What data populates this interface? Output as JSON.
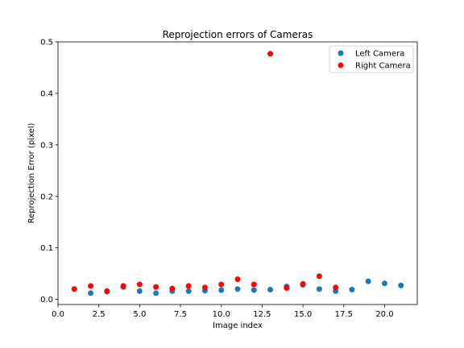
{
  "chart_data": {
    "type": "scatter",
    "title": "Reprojection errors of Cameras",
    "xlabel": "Image index",
    "ylabel": "Reprojection Error (pixel)",
    "xlim": [
      0,
      22
    ],
    "ylim": [
      -0.01,
      0.5
    ],
    "xticks": [
      0.0,
      2.5,
      5.0,
      7.5,
      10.0,
      12.5,
      15.0,
      17.5,
      20.0
    ],
    "xtick_labels": [
      "0.0",
      "2.5",
      "5.0",
      "7.5",
      "10.0",
      "12.5",
      "15.0",
      "17.5",
      "20.0"
    ],
    "yticks": [
      0.0,
      0.1,
      0.2,
      0.3,
      0.4,
      0.5
    ],
    "ytick_labels": [
      "0.0",
      "0.1",
      "0.2",
      "0.3",
      "0.4",
      "0.5"
    ],
    "grid": false,
    "legend_position": "top-right",
    "series": [
      {
        "name": "Left Camera",
        "color": "#1f77b4",
        "x": [
          1,
          2,
          3,
          4,
          5,
          6,
          7,
          8,
          9,
          10,
          11,
          12,
          13,
          14,
          15,
          16,
          17,
          18,
          19,
          20,
          21
        ],
        "y": [
          0.02,
          0.012,
          0.015,
          0.024,
          0.016,
          0.012,
          0.016,
          0.016,
          0.017,
          0.018,
          0.02,
          0.018,
          0.019,
          0.025,
          0.028,
          0.02,
          0.016,
          0.019,
          0.035,
          0.031,
          0.027
        ]
      },
      {
        "name": "Right Camera",
        "color": "#ff0000",
        "x": [
          1,
          2,
          3,
          4,
          5,
          6,
          7,
          8,
          9,
          10,
          11,
          12,
          13,
          14,
          15,
          16,
          17
        ],
        "y": [
          0.02,
          0.026,
          0.016,
          0.026,
          0.029,
          0.024,
          0.021,
          0.026,
          0.023,
          0.029,
          0.039,
          0.029,
          0.477,
          0.022,
          0.03,
          0.045,
          0.023
        ]
      }
    ]
  }
}
